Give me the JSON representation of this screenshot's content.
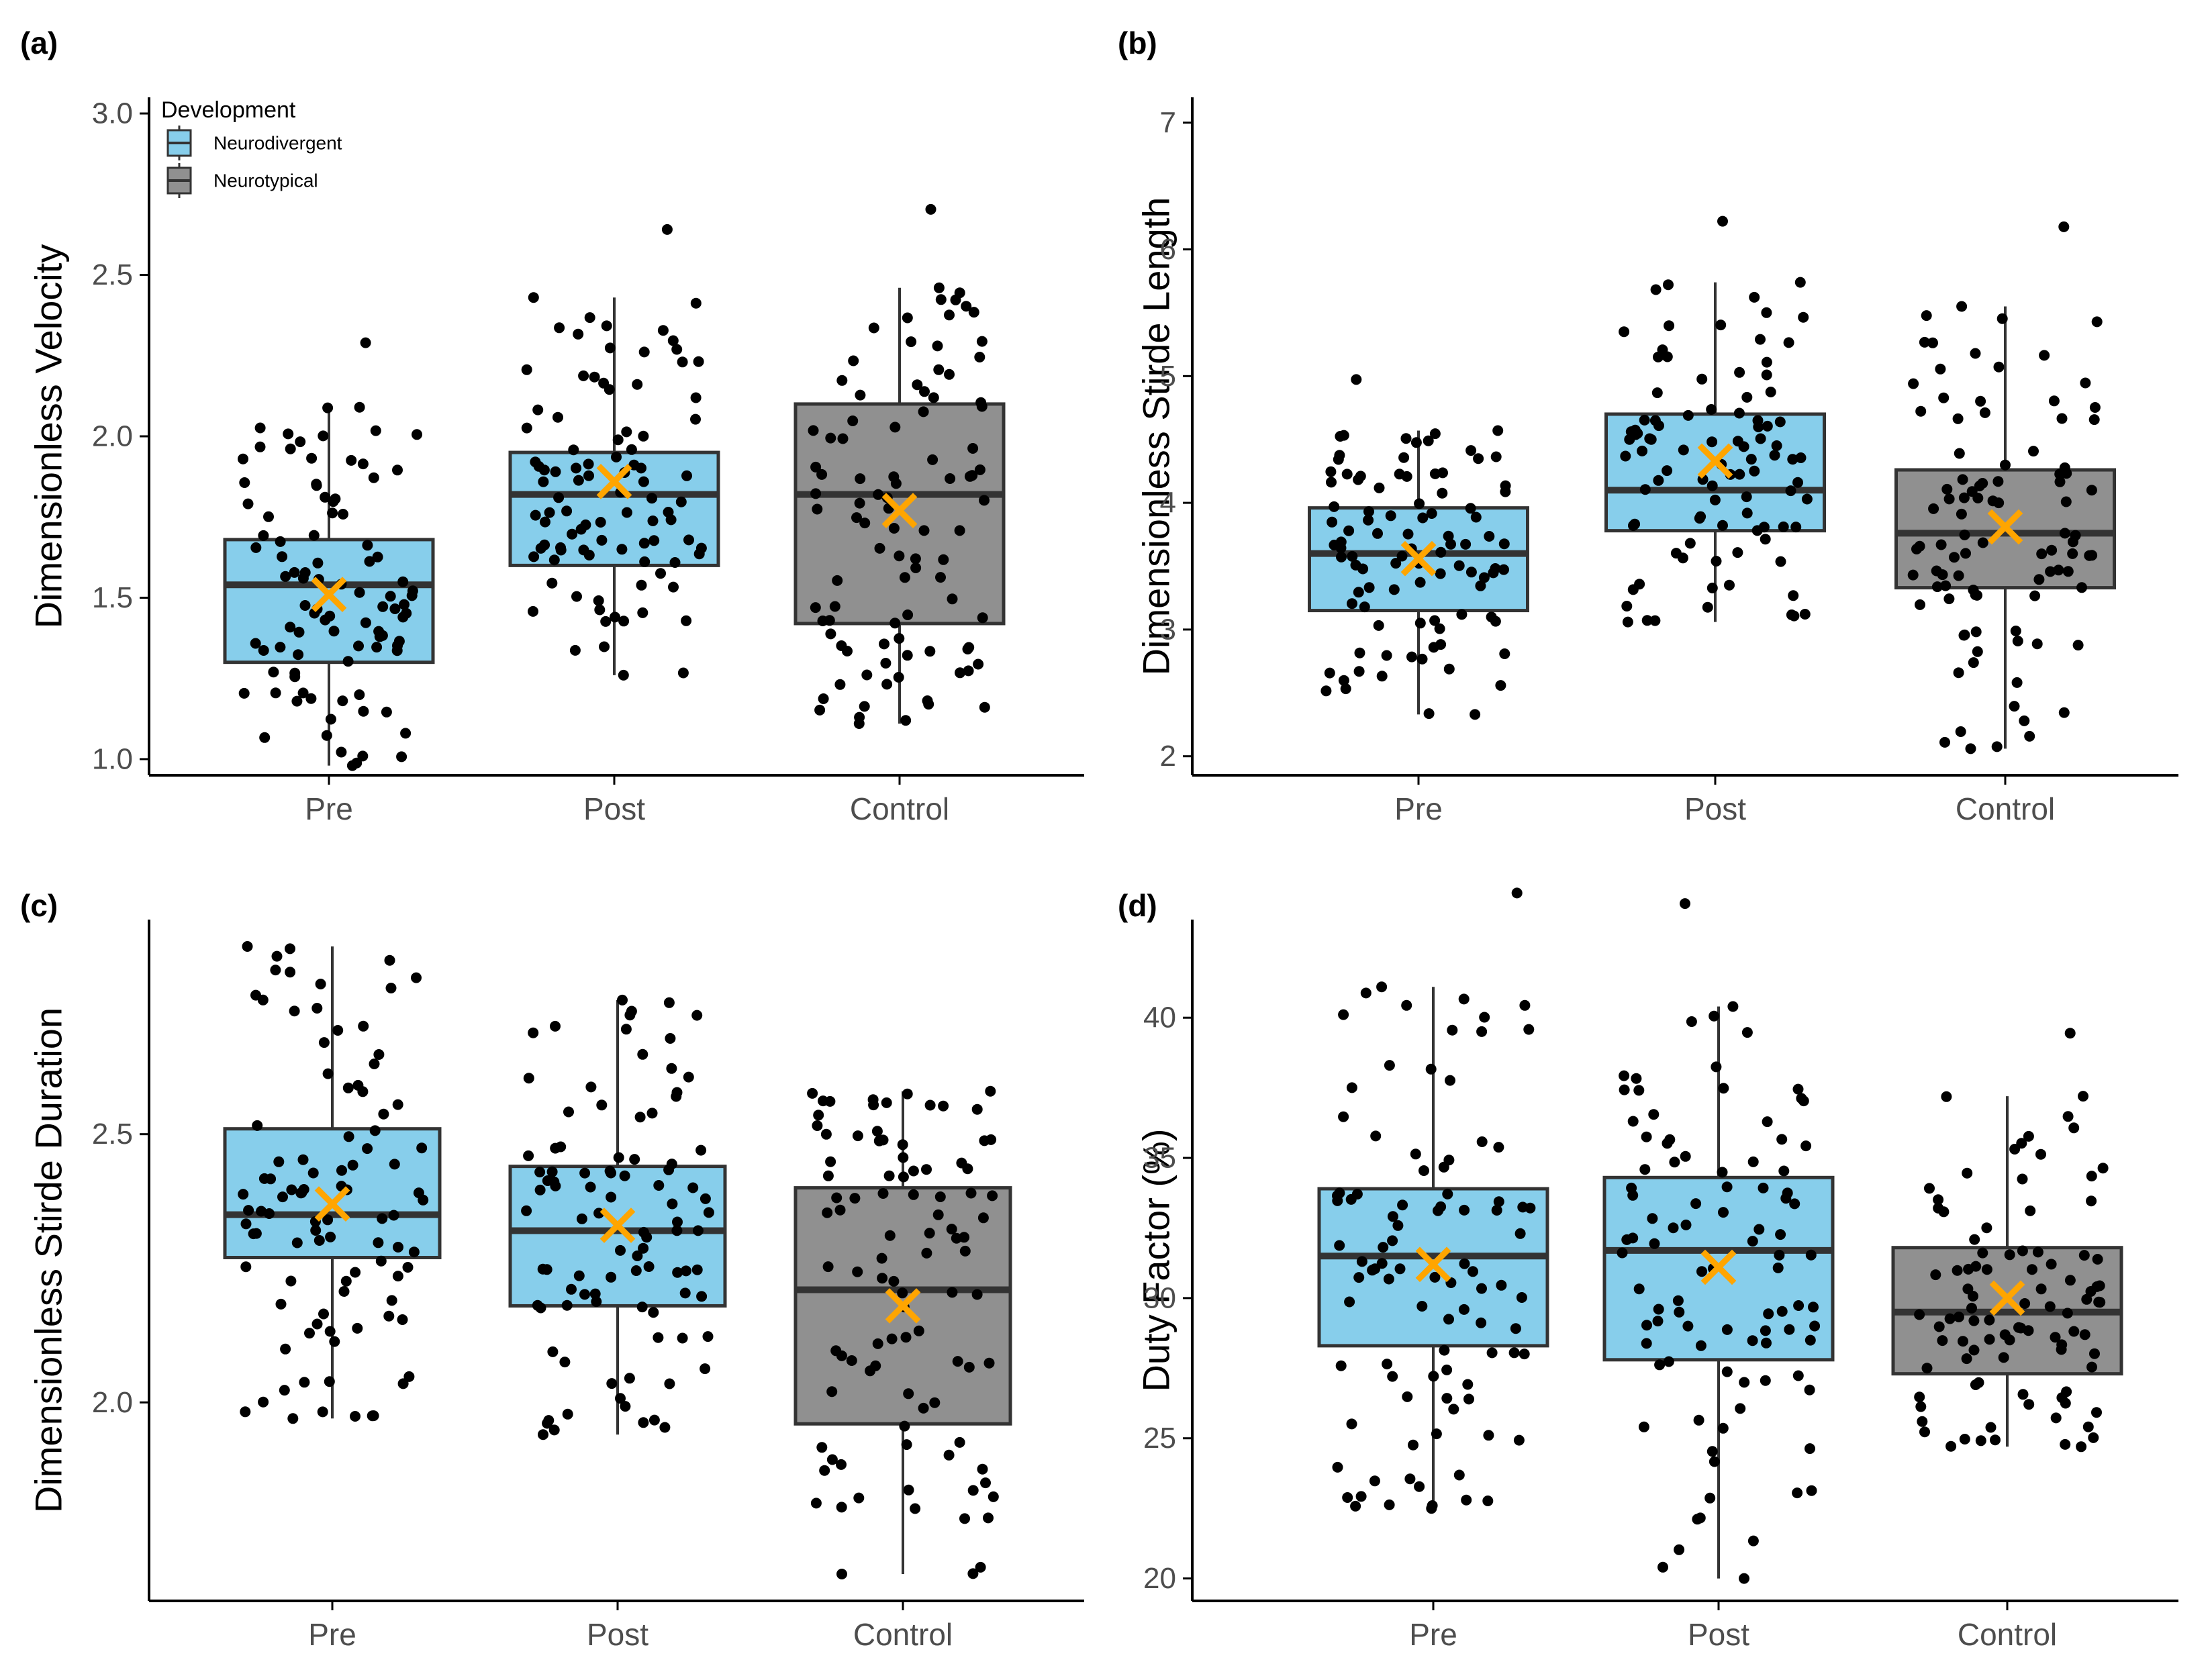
{
  "colors": {
    "neurodivergent": "#87CEEB",
    "neurotypical": "#909090",
    "box_stroke": "#333333",
    "median": "#333333",
    "mean_marker": "#FFA500",
    "points": "#000000",
    "axis": "#000000",
    "tick_text": "#4D4D4D"
  },
  "legend": {
    "title": "Development",
    "items": [
      {
        "label": "Neurodivergent",
        "color": "#87CEEB"
      },
      {
        "label": "Neurotypical",
        "color": "#909090"
      }
    ]
  },
  "chart_data": [
    {
      "panel": "(a)",
      "type": "box",
      "ylabel": "Dimensionless Velocity",
      "xlabel": "",
      "categories": [
        "Pre",
        "Post",
        "Control"
      ],
      "ylim": [
        0.95,
        3.05
      ],
      "yticks": [
        1.0,
        1.5,
        2.0,
        2.5,
        3.0
      ],
      "ytick_labels": [
        "1.0",
        "1.5",
        "2.0",
        "2.5",
        "3.0"
      ],
      "show_legend": true,
      "boxes": [
        {
          "category": "Pre",
          "group": "Neurodivergent",
          "q1": 1.3,
          "median": 1.54,
          "q3": 1.68,
          "whisker_low": 0.98,
          "whisker_high": 2.09,
          "mean": 1.51
        },
        {
          "category": "Post",
          "group": "Neurodivergent",
          "q1": 1.6,
          "median": 1.82,
          "q3": 1.95,
          "whisker_low": 1.26,
          "whisker_high": 2.43,
          "mean": 1.86
        },
        {
          "category": "Control",
          "group": "Neurotypical",
          "q1": 1.42,
          "median": 1.82,
          "q3": 2.1,
          "whisker_low": 1.11,
          "whisker_high": 2.46,
          "mean": 1.77
        }
      ]
    },
    {
      "panel": "(b)",
      "type": "box",
      "ylabel": "Dimensionless Stirde Length",
      "xlabel": "",
      "categories": [
        "Pre",
        "Post",
        "Control"
      ],
      "ylim": [
        1.85,
        7.2
      ],
      "yticks": [
        2,
        3,
        4,
        5,
        6,
        7
      ],
      "ytick_labels": [
        "2",
        "3",
        "4",
        "5",
        "6",
        "7"
      ],
      "show_legend": false,
      "boxes": [
        {
          "category": "Pre",
          "group": "Neurodivergent",
          "q1": 3.15,
          "median": 3.6,
          "q3": 3.96,
          "whisker_low": 2.33,
          "whisker_high": 4.57,
          "mean": 3.56
        },
        {
          "category": "Post",
          "group": "Neurodivergent",
          "q1": 3.78,
          "median": 4.1,
          "q3": 4.7,
          "whisker_low": 3.06,
          "whisker_high": 5.74,
          "mean": 4.33
        },
        {
          "category": "Control",
          "group": "Neurotypical",
          "q1": 3.33,
          "median": 3.76,
          "q3": 4.26,
          "whisker_low": 2.06,
          "whisker_high": 5.55,
          "mean": 3.81
        }
      ]
    },
    {
      "panel": "(c)",
      "type": "box",
      "ylabel": "Dimensionless Stirde Duration",
      "xlabel": "",
      "categories": [
        "Pre",
        "Post",
        "Control"
      ],
      "ylim": [
        1.63,
        2.9
      ],
      "yticks": [
        2.0,
        2.5
      ],
      "ytick_labels": [
        "2.0",
        "2.5"
      ],
      "show_legend": false,
      "boxes": [
        {
          "category": "Pre",
          "group": "Neurodivergent",
          "q1": 2.27,
          "median": 2.35,
          "q3": 2.51,
          "whisker_low": 1.97,
          "whisker_high": 2.85,
          "mean": 2.37
        },
        {
          "category": "Post",
          "group": "Neurodivergent",
          "q1": 2.18,
          "median": 2.32,
          "q3": 2.44,
          "whisker_low": 1.94,
          "whisker_high": 2.75,
          "mean": 2.33
        },
        {
          "category": "Control",
          "group": "Neurotypical",
          "q1": 1.96,
          "median": 2.21,
          "q3": 2.4,
          "whisker_low": 1.68,
          "whisker_high": 2.58,
          "mean": 2.18
        }
      ]
    },
    {
      "panel": "(d)",
      "type": "box",
      "ylabel": "Duty Factor (%)",
      "xlabel": "",
      "categories": [
        "Pre",
        "Post",
        "Control"
      ],
      "ylim": [
        19.2,
        43.5
      ],
      "yticks": [
        20,
        25,
        30,
        35,
        40
      ],
      "ytick_labels": [
        "20",
        "25",
        "30",
        "35",
        "40"
      ],
      "show_legend": false,
      "boxes": [
        {
          "category": "Pre",
          "group": "Neurodivergent",
          "q1": 28.3,
          "median": 31.5,
          "q3": 33.9,
          "whisker_low": 22.5,
          "whisker_high": 41.1,
          "mean": 31.2
        },
        {
          "category": "Post",
          "group": "Neurodivergent",
          "q1": 27.8,
          "median": 31.7,
          "q3": 34.3,
          "whisker_low": 20.0,
          "whisker_high": 40.4,
          "mean": 31.1
        },
        {
          "category": "Control",
          "group": "Neurotypical",
          "q1": 27.3,
          "median": 29.5,
          "q3": 31.8,
          "whisker_low": 24.7,
          "whisker_high": 37.2,
          "mean": 30.0
        }
      ]
    }
  ]
}
